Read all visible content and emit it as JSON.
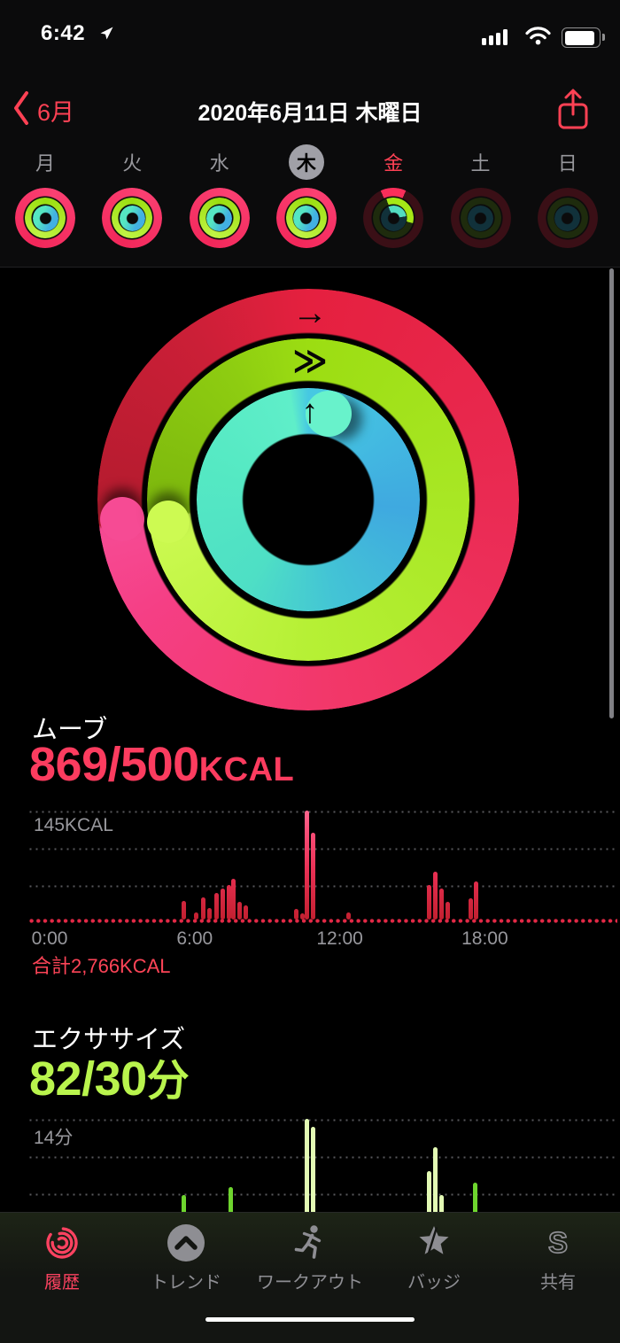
{
  "status_bar": {
    "time": "6:42"
  },
  "nav": {
    "back_label": "6月",
    "title": "2020年6月11日 木曜日"
  },
  "week": {
    "days": [
      {
        "label": "月",
        "rings": "complete"
      },
      {
        "label": "火",
        "rings": "complete"
      },
      {
        "label": "水",
        "rings": "complete"
      },
      {
        "label": "木",
        "rings": "complete",
        "selected": true
      },
      {
        "label": "金",
        "rings": "partial",
        "today": true
      },
      {
        "label": "土",
        "rings": "empty"
      },
      {
        "label": "日",
        "rings": "empty"
      }
    ]
  },
  "rings": {
    "arrows": {
      "move": "→",
      "exercise": "≫",
      "stand": "↑"
    }
  },
  "move": {
    "label": "ムーブ",
    "value": "869/500",
    "unit": "KCAL",
    "max_label": "145KCAL",
    "total_label": "合計2,766KCAL"
  },
  "exercise": {
    "label": "エクササイズ",
    "value": "82/30",
    "unit": "分",
    "max_label": "14分"
  },
  "colors": {
    "move_accent": "#fc3c5f",
    "exercise_accent": "#b9f44d",
    "stand_accent": "#4fd9cb",
    "nav_accent": "#fd4154",
    "tab_active": "#fb4260",
    "label_gray": "#98989d"
  },
  "chart_data": [
    {
      "id": "move-chart",
      "type": "bar",
      "title": "ムーブ",
      "unit": "KCAL",
      "ylim": [
        0,
        145
      ],
      "y_max_label": "145KCAL",
      "x_ticks": [
        {
          "t": 0,
          "label": "0:00"
        },
        {
          "t": 6,
          "label": "6:00"
        },
        {
          "t": 12,
          "label": "12:00"
        },
        {
          "t": 18,
          "label": "18:00"
        }
      ],
      "total_label": "合計2,766KCAL",
      "bars": [
        {
          "t": 5.55,
          "v": 25
        },
        {
          "t": 6.05,
          "v": 10
        },
        {
          "t": 6.35,
          "v": 29
        },
        {
          "t": 6.6,
          "v": 15
        },
        {
          "t": 6.9,
          "v": 35
        },
        {
          "t": 7.15,
          "v": 41
        },
        {
          "t": 7.4,
          "v": 46
        },
        {
          "t": 7.6,
          "v": 54
        },
        {
          "t": 7.85,
          "v": 23
        },
        {
          "t": 8.1,
          "v": 19
        },
        {
          "t": 10.2,
          "v": 14
        },
        {
          "t": 10.45,
          "v": 8
        },
        {
          "t": 10.65,
          "v": 145
        },
        {
          "t": 10.9,
          "v": 116
        },
        {
          "t": 12.35,
          "v": 10
        },
        {
          "t": 15.7,
          "v": 46
        },
        {
          "t": 15.95,
          "v": 64
        },
        {
          "t": 16.2,
          "v": 41
        },
        {
          "t": 16.45,
          "v": 24
        },
        {
          "t": 17.4,
          "v": 28
        },
        {
          "t": 17.65,
          "v": 51
        }
      ]
    },
    {
      "id": "exercise-chart",
      "type": "bar",
      "title": "エクササイズ",
      "unit": "分",
      "ylim": [
        0,
        14
      ],
      "y_max_label": "14分",
      "x_ticks": [],
      "bars": [
        {
          "t": 5.55,
          "v": 4.5
        },
        {
          "t": 7.5,
          "v": 5.5
        },
        {
          "t": 10.65,
          "v": 14,
          "bright": true
        },
        {
          "t": 10.9,
          "v": 13,
          "bright": true
        },
        {
          "t": 15.7,
          "v": 7.5,
          "bright": true
        },
        {
          "t": 15.95,
          "v": 10.5,
          "bright": true
        },
        {
          "t": 16.2,
          "v": 4.5,
          "bright": true
        },
        {
          "t": 17.35,
          "v": 1.5
        },
        {
          "t": 17.6,
          "v": 6
        }
      ]
    }
  ],
  "tab_bar": {
    "items": [
      {
        "label": "履歴",
        "icon": "history-rings-icon",
        "active": true
      },
      {
        "label": "トレンド",
        "icon": "trends-chevron-icon",
        "active": false
      },
      {
        "label": "ワークアウト",
        "icon": "workout-runner-icon",
        "active": false
      },
      {
        "label": "バッジ",
        "icon": "badges-star-icon",
        "active": false
      },
      {
        "label": "共有",
        "icon": "sharing-s-icon",
        "active": false
      }
    ]
  }
}
